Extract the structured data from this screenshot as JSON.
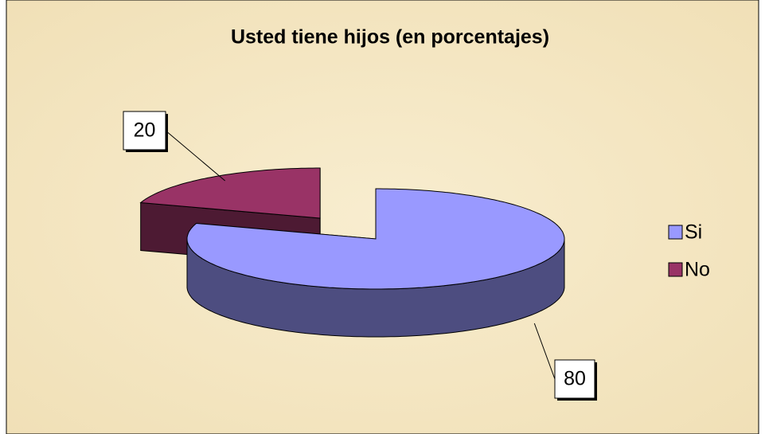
{
  "chart_data": {
    "type": "pie3d",
    "title": "Usted tiene hijos (en porcentajes)",
    "categories": [
      "Si",
      "No"
    ],
    "values": [
      80,
      20
    ],
    "colors": [
      "#9999ff",
      "#993366"
    ],
    "legend": "right"
  }
}
